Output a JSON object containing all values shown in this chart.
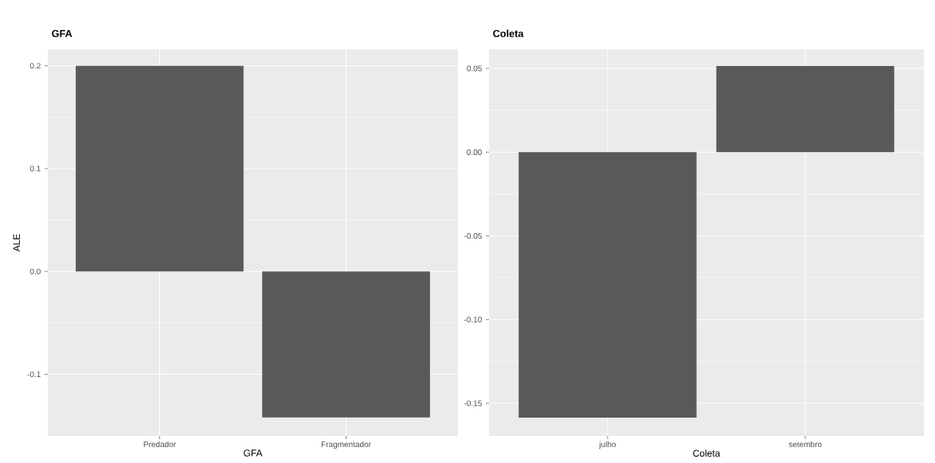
{
  "chart_data": [
    {
      "type": "bar",
      "title": "GFA",
      "xlabel": "GFA",
      "ylabel": "ALE",
      "categories": [
        "Predador",
        "Fragmentador"
      ],
      "values": [
        0.2,
        -0.142
      ],
      "color": "#595959",
      "ylim": [
        -0.16,
        0.216
      ],
      "yticks": [
        {
          "value": -0.1,
          "label": "-0.1"
        },
        {
          "value": 0,
          "label": "0.0"
        },
        {
          "value": 0.1,
          "label": "0.1"
        },
        {
          "value": 0.2,
          "label": "0.2"
        }
      ],
      "grid": true
    },
    {
      "type": "bar",
      "title": "Coleta",
      "xlabel": "Coleta",
      "categories": [
        "julho",
        "setembro"
      ],
      "values": [
        -0.1586,
        0.0514
      ],
      "color": "#595959",
      "ylim": [
        -0.1695,
        0.0614
      ],
      "yticks": [
        {
          "value": -0.15,
          "label": "-0.15"
        },
        {
          "value": -0.1,
          "label": "-0.10"
        },
        {
          "value": -0.05,
          "label": "-0.05"
        },
        {
          "value": 0,
          "label": "0.00"
        },
        {
          "value": 0.05,
          "label": "0.05"
        }
      ],
      "grid": true
    }
  ]
}
